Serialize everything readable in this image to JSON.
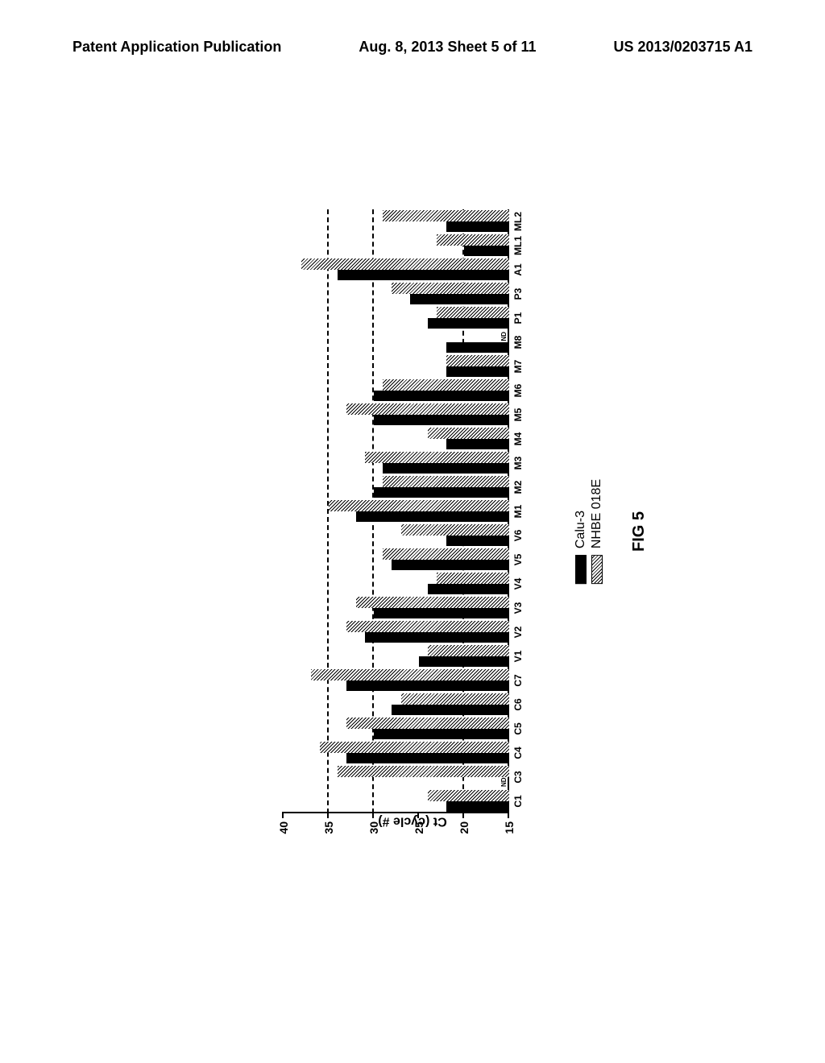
{
  "header": {
    "left": "Patent Application Publication",
    "center": "Aug. 8, 2013  Sheet 5 of 11",
    "right": "US 2013/0203715 A1"
  },
  "chart": {
    "type": "bar",
    "y_axis_label": "Ct (cycle #)",
    "ylim": [
      15,
      40
    ],
    "ytick_step": 5,
    "yticks": [
      15,
      20,
      25,
      30,
      35,
      40
    ],
    "gridlines": [
      20,
      30,
      35
    ],
    "background_color": "#ffffff",
    "grid_color": "#000000",
    "nd_text": "ND",
    "categories": [
      "C1",
      "C3",
      "C4",
      "C5",
      "C6",
      "C7",
      "V1",
      "V2",
      "V3",
      "V4",
      "V5",
      "V6",
      "M1",
      "M2",
      "M3",
      "M4",
      "M5",
      "M6",
      "M7",
      "M8",
      "P1",
      "P3",
      "A1",
      "ML1",
      "ML2"
    ],
    "series": [
      {
        "name": "calu",
        "color": "#000000",
        "values": [
          22,
          null,
          33,
          30,
          28,
          33,
          25,
          31,
          30,
          24,
          28,
          22,
          32,
          30,
          29,
          22,
          30,
          30,
          22,
          22,
          24,
          26,
          34,
          20,
          22
        ]
      },
      {
        "name": "nhbe",
        "color": "pattern",
        "values": [
          24,
          34,
          36,
          33,
          27,
          37,
          24,
          33,
          32,
          23,
          29,
          27,
          35,
          29,
          31,
          24,
          33,
          29,
          22,
          null,
          23,
          28,
          38,
          23,
          29
        ]
      }
    ],
    "legend": [
      {
        "swatch": "calu",
        "label": "Calu-3"
      },
      {
        "swatch": "nhbe",
        "label": "NHBE 018E"
      }
    ]
  },
  "figure_label": "FIG 5"
}
